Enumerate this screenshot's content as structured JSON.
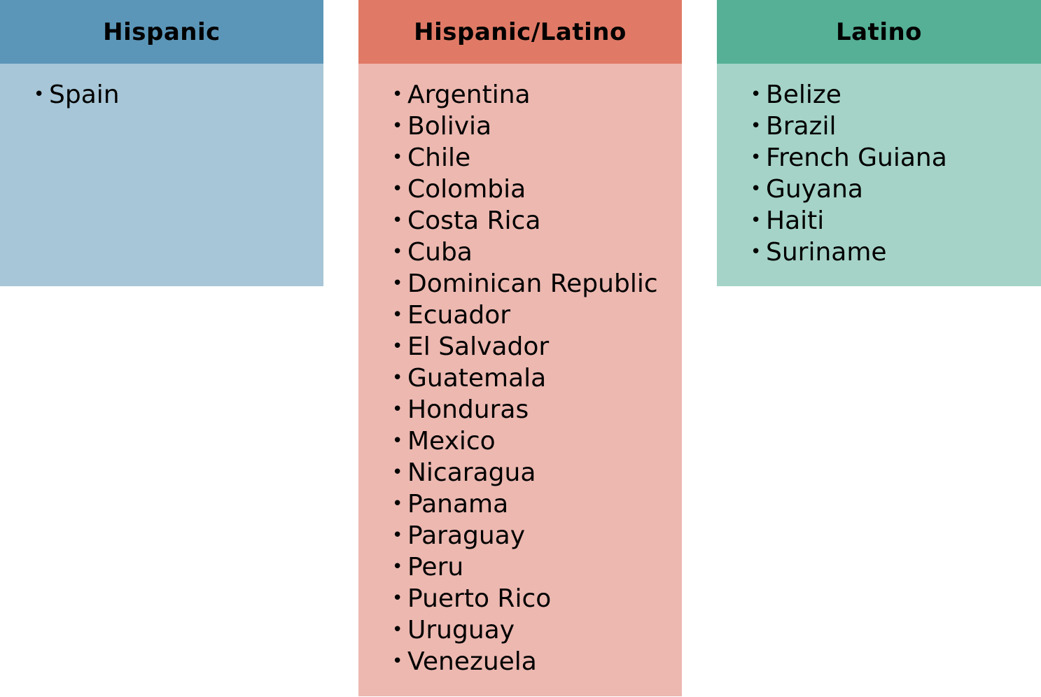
{
  "columns": [
    {
      "title": "Hispanic",
      "header_color": "#5b96b8",
      "body_color": "#a7c6d7",
      "items": [
        "Spain"
      ]
    },
    {
      "title": "Hispanic/Latino",
      "header_color": "#e07a66",
      "body_color": "#ecb8b0",
      "items": [
        "Argentina",
        "Bolivia",
        "Chile",
        "Colombia",
        "Costa Rica",
        "Cuba",
        "Dominican Republic",
        "Ecuador",
        "El Salvador",
        "Guatemala",
        "Honduras",
        "Mexico",
        "Nicaragua",
        "Panama",
        "Paraguay",
        "Peru",
        "Puerto Rico",
        "Uruguay",
        "Venezuela"
      ]
    },
    {
      "title": "Latino",
      "header_color": "#55b095",
      "body_color": "#a5d3c7",
      "items": [
        "Belize",
        "Brazil",
        "French Guiana",
        "Guyana",
        "Haiti",
        "Suriname"
      ]
    }
  ]
}
